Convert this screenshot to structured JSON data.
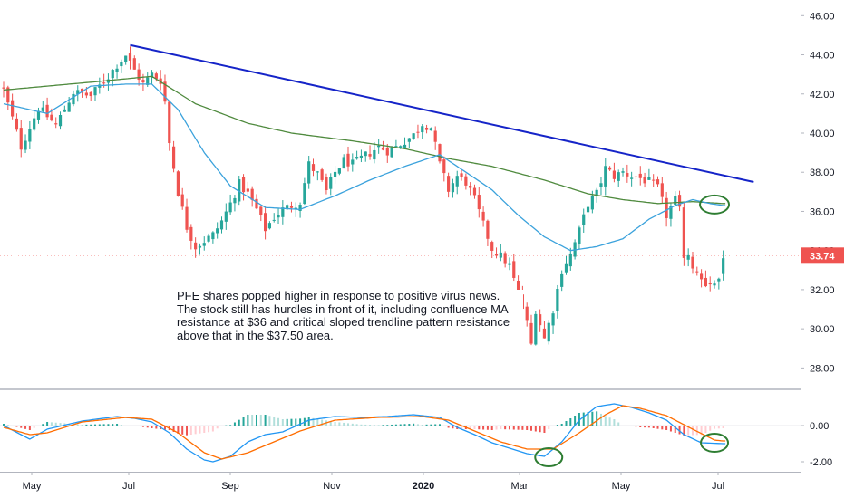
{
  "chart_data": [
    {
      "type": "candlestick",
      "ylim": [
        27,
        46.8
      ],
      "y_ticks": [
        "46.00",
        "44.00",
        "42.00",
        "40.00",
        "38.00",
        "36.00",
        "34.00",
        "32.00",
        "30.00",
        "28.00"
      ],
      "x_ticks": [
        "May",
        "Jul",
        "Sep",
        "Nov",
        "2020",
        "Mar",
        "May",
        "Jul"
      ],
      "last_price_label": "33.74",
      "last_price": 33.74,
      "colors": {
        "up": "#26a69a",
        "down": "#ef5350",
        "ma_fast": "#3ba2dc",
        "ma_slow": "#4f8a3e",
        "trendline": "#1524c8",
        "circle": "#2e7d32",
        "price_tag": "#ef5350"
      },
      "close_anchors": [
        [
          0,
          42.2
        ],
        [
          4,
          39.3
        ],
        [
          8,
          41.3
        ],
        [
          12,
          40.4
        ],
        [
          16,
          42.1
        ],
        [
          20,
          41.9
        ],
        [
          24,
          42.9
        ],
        [
          26,
          43.5
        ],
        [
          28,
          44.0
        ],
        [
          30,
          43.2
        ],
        [
          32,
          42.5
        ],
        [
          34,
          43.0
        ],
        [
          36,
          42.7
        ],
        [
          37,
          41.6
        ],
        [
          38,
          39.5
        ],
        [
          40,
          37.0
        ],
        [
          42,
          35.2
        ],
        [
          44,
          34.2
        ],
        [
          46,
          34.5
        ],
        [
          48,
          34.8
        ],
        [
          50,
          35.5
        ],
        [
          52,
          36.4
        ],
        [
          54,
          37.4
        ],
        [
          56,
          36.9
        ],
        [
          58,
          36.1
        ],
        [
          60,
          35.1
        ],
        [
          62,
          35.7
        ],
        [
          64,
          36.1
        ],
        [
          66,
          36.3
        ],
        [
          68,
          36.5
        ],
        [
          70,
          38.4
        ],
        [
          72,
          37.9
        ],
        [
          74,
          37.0
        ],
        [
          76,
          38.0
        ],
        [
          78,
          38.6
        ],
        [
          80,
          38.4
        ],
        [
          82,
          38.7
        ],
        [
          84,
          39.0
        ],
        [
          86,
          39.3
        ],
        [
          88,
          39.1
        ],
        [
          90,
          39.3
        ],
        [
          92,
          39.6
        ],
        [
          94,
          39.9
        ],
        [
          96,
          40.5
        ],
        [
          98,
          40.3
        ],
        [
          100,
          38.4
        ],
        [
          102,
          37.1
        ],
        [
          104,
          37.8
        ],
        [
          106,
          37.5
        ],
        [
          108,
          36.6
        ],
        [
          110,
          35.3
        ],
        [
          112,
          34.1
        ],
        [
          114,
          33.7
        ],
        [
          116,
          33.2
        ],
        [
          118,
          31.8
        ],
        [
          120,
          30.3
        ],
        [
          121,
          29.2
        ],
        [
          122,
          31.0
        ],
        [
          124,
          29.5
        ],
        [
          126,
          31.0
        ],
        [
          128,
          33.0
        ],
        [
          130,
          33.8
        ],
        [
          132,
          35.0
        ],
        [
          134,
          36.4
        ],
        [
          136,
          36.9
        ],
        [
          138,
          38.2
        ],
        [
          140,
          37.8
        ],
        [
          142,
          38.0
        ],
        [
          144,
          37.8
        ],
        [
          146,
          37.7
        ],
        [
          148,
          37.5
        ],
        [
          150,
          37.2
        ],
        [
          152,
          35.8
        ],
        [
          154,
          36.6
        ],
        [
          155,
          36.0
        ],
        [
          156,
          33.8
        ],
        [
          158,
          33.3
        ],
        [
          160,
          32.6
        ],
        [
          162,
          32.2
        ],
        [
          164,
          32.6
        ],
        [
          165,
          33.74
        ]
      ],
      "sma_fast_anchors": [
        [
          0,
          41.5
        ],
        [
          10,
          41.0
        ],
        [
          20,
          42.4
        ],
        [
          28,
          42.5
        ],
        [
          34,
          42.5
        ],
        [
          40,
          41.2
        ],
        [
          46,
          39.0
        ],
        [
          52,
          37.3
        ],
        [
          60,
          36.2
        ],
        [
          68,
          36.1
        ],
        [
          76,
          36.8
        ],
        [
          84,
          37.6
        ],
        [
          92,
          38.3
        ],
        [
          100,
          38.9
        ],
        [
          106,
          38.0
        ],
        [
          112,
          37.1
        ],
        [
          118,
          35.8
        ],
        [
          124,
          34.7
        ],
        [
          130,
          34.0
        ],
        [
          136,
          34.2
        ],
        [
          142,
          34.6
        ],
        [
          148,
          35.6
        ],
        [
          154,
          36.3
        ],
        [
          158,
          36.6
        ],
        [
          162,
          36.4
        ],
        [
          165,
          36.3
        ]
      ],
      "sma_slow_anchors": [
        [
          0,
          42.2
        ],
        [
          20,
          42.6
        ],
        [
          34,
          42.9
        ],
        [
          44,
          41.5
        ],
        [
          56,
          40.5
        ],
        [
          66,
          40.0
        ],
        [
          80,
          39.6
        ],
        [
          92,
          39.2
        ],
        [
          102,
          38.7
        ],
        [
          112,
          38.3
        ],
        [
          124,
          37.6
        ],
        [
          134,
          36.9
        ],
        [
          142,
          36.6
        ],
        [
          150,
          36.4
        ],
        [
          158,
          36.5
        ],
        [
          165,
          36.4
        ]
      ],
      "trendline": [
        [
          29,
          44.5
        ],
        [
          172,
          37.5
        ]
      ],
      "circles": [
        [
          163,
          36.35
        ]
      ]
    },
    {
      "type": "macd",
      "ylim": [
        -2.5,
        1.9
      ],
      "y_ticks": [
        "0.00",
        "-2.00"
      ],
      "macd_anchors": [
        [
          0,
          0.0
        ],
        [
          6,
          -0.75
        ],
        [
          10,
          -0.2
        ],
        [
          18,
          0.25
        ],
        [
          26,
          0.5
        ],
        [
          30,
          0.4
        ],
        [
          34,
          0.2
        ],
        [
          38,
          -0.4
        ],
        [
          42,
          -1.3
        ],
        [
          46,
          -1.9
        ],
        [
          48,
          -2.0
        ],
        [
          52,
          -1.7
        ],
        [
          56,
          -0.9
        ],
        [
          60,
          -0.5
        ],
        [
          64,
          -0.35
        ],
        [
          70,
          0.3
        ],
        [
          76,
          0.5
        ],
        [
          82,
          0.45
        ],
        [
          88,
          0.5
        ],
        [
          94,
          0.6
        ],
        [
          100,
          0.45
        ],
        [
          104,
          -0.1
        ],
        [
          108,
          -0.5
        ],
        [
          112,
          -0.95
        ],
        [
          116,
          -1.25
        ],
        [
          120,
          -1.55
        ],
        [
          124,
          -1.7
        ],
        [
          128,
          -0.9
        ],
        [
          132,
          0.3
        ],
        [
          136,
          1.05
        ],
        [
          140,
          1.2
        ],
        [
          144,
          1.0
        ],
        [
          148,
          0.7
        ],
        [
          152,
          0.3
        ],
        [
          156,
          -0.5
        ],
        [
          160,
          -0.95
        ],
        [
          165,
          -1.0
        ]
      ],
      "signal_anchors": [
        [
          0,
          -0.1
        ],
        [
          6,
          -0.5
        ],
        [
          10,
          -0.4
        ],
        [
          18,
          0.2
        ],
        [
          28,
          0.45
        ],
        [
          34,
          0.35
        ],
        [
          40,
          -0.4
        ],
        [
          46,
          -1.5
        ],
        [
          50,
          -1.85
        ],
        [
          56,
          -1.5
        ],
        [
          62,
          -0.9
        ],
        [
          68,
          -0.3
        ],
        [
          76,
          0.3
        ],
        [
          86,
          0.45
        ],
        [
          96,
          0.5
        ],
        [
          102,
          0.3
        ],
        [
          108,
          -0.3
        ],
        [
          114,
          -0.9
        ],
        [
          120,
          -1.3
        ],
        [
          126,
          -1.3
        ],
        [
          132,
          -0.4
        ],
        [
          138,
          0.6
        ],
        [
          142,
          1.1
        ],
        [
          146,
          0.95
        ],
        [
          152,
          0.55
        ],
        [
          158,
          -0.2
        ],
        [
          163,
          -0.8
        ],
        [
          165,
          -0.85
        ]
      ],
      "circles": [
        [
          125,
          -1.75
        ],
        [
          163,
          -0.95
        ]
      ]
    }
  ],
  "annotation": {
    "text": "PFE shares popped higher in response to positive virus news. The stock still has hurdles in front of it, including confluence MA resistance at $36 and critical sloped trendline pattern resistance above that in the $37.50 area."
  }
}
